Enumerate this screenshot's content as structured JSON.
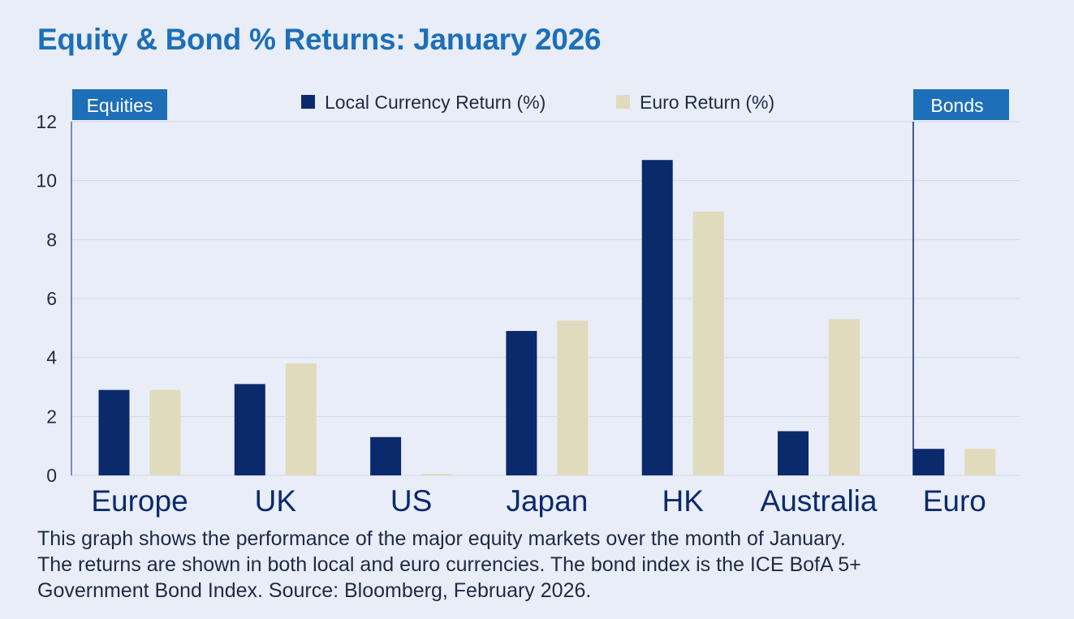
{
  "title": "Equity & Bond % Returns: January 2026",
  "caption": [
    "This graph shows the performance of the major equity markets over the month of January.",
    "The returns are shown in both local and euro currencies. The bond index is the ICE BofA 5+",
    "Government Bond Index. Source: Bloomberg, February 2026."
  ],
  "sections": {
    "equities_label": "Equities",
    "bonds_label": "Bonds",
    "color": "#1d6fb8"
  },
  "chart_data": {
    "type": "bar",
    "categories": [
      "Europe",
      "UK",
      "US",
      "Japan",
      "HK",
      "Australia",
      "Euro"
    ],
    "series": [
      {
        "name": "Local Currency Return (%)",
        "color": "#0b2a6b",
        "values": [
          2.9,
          3.1,
          1.3,
          4.9,
          10.7,
          1.5,
          0.9
        ]
      },
      {
        "name": "Euro Return (%)",
        "color": "#e0dbbd",
        "values": [
          2.9,
          3.8,
          0.05,
          5.25,
          8.95,
          5.3,
          0.9
        ]
      }
    ],
    "ylim": [
      0,
      12
    ],
    "yticks": [
      "0",
      "2",
      "4",
      "6",
      "8",
      "10",
      "12"
    ],
    "grid": true,
    "legend_position": "top-center",
    "colors": {
      "background": "#e9edf7",
      "grid": "#d2d8e6",
      "axis": "#0b2a6b",
      "text": "#1f2a44"
    }
  }
}
